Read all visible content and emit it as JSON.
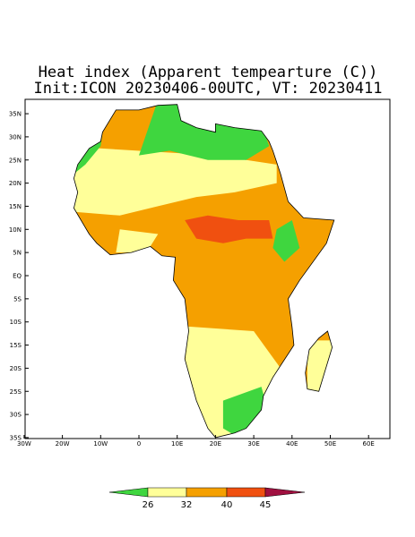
{
  "map": {
    "title": "Heat index (Apparent tempearture (C))",
    "subtitle": "Init:ICON 20230406-00UTC, VT: 20230411",
    "lon_labels": [
      "30W",
      "20W",
      "10W",
      "0",
      "10E",
      "20E",
      "30E",
      "40E",
      "50E",
      "60E"
    ],
    "lat_labels": [
      "35N",
      "30N",
      "25N",
      "20N",
      "15N",
      "10N",
      "5N",
      "EQ",
      "5S",
      "10S",
      "15S",
      "20S",
      "25S",
      "30S",
      "35S"
    ],
    "colorbar": {
      "labels": [
        26,
        32,
        40,
        45
      ]
    }
  }
}
